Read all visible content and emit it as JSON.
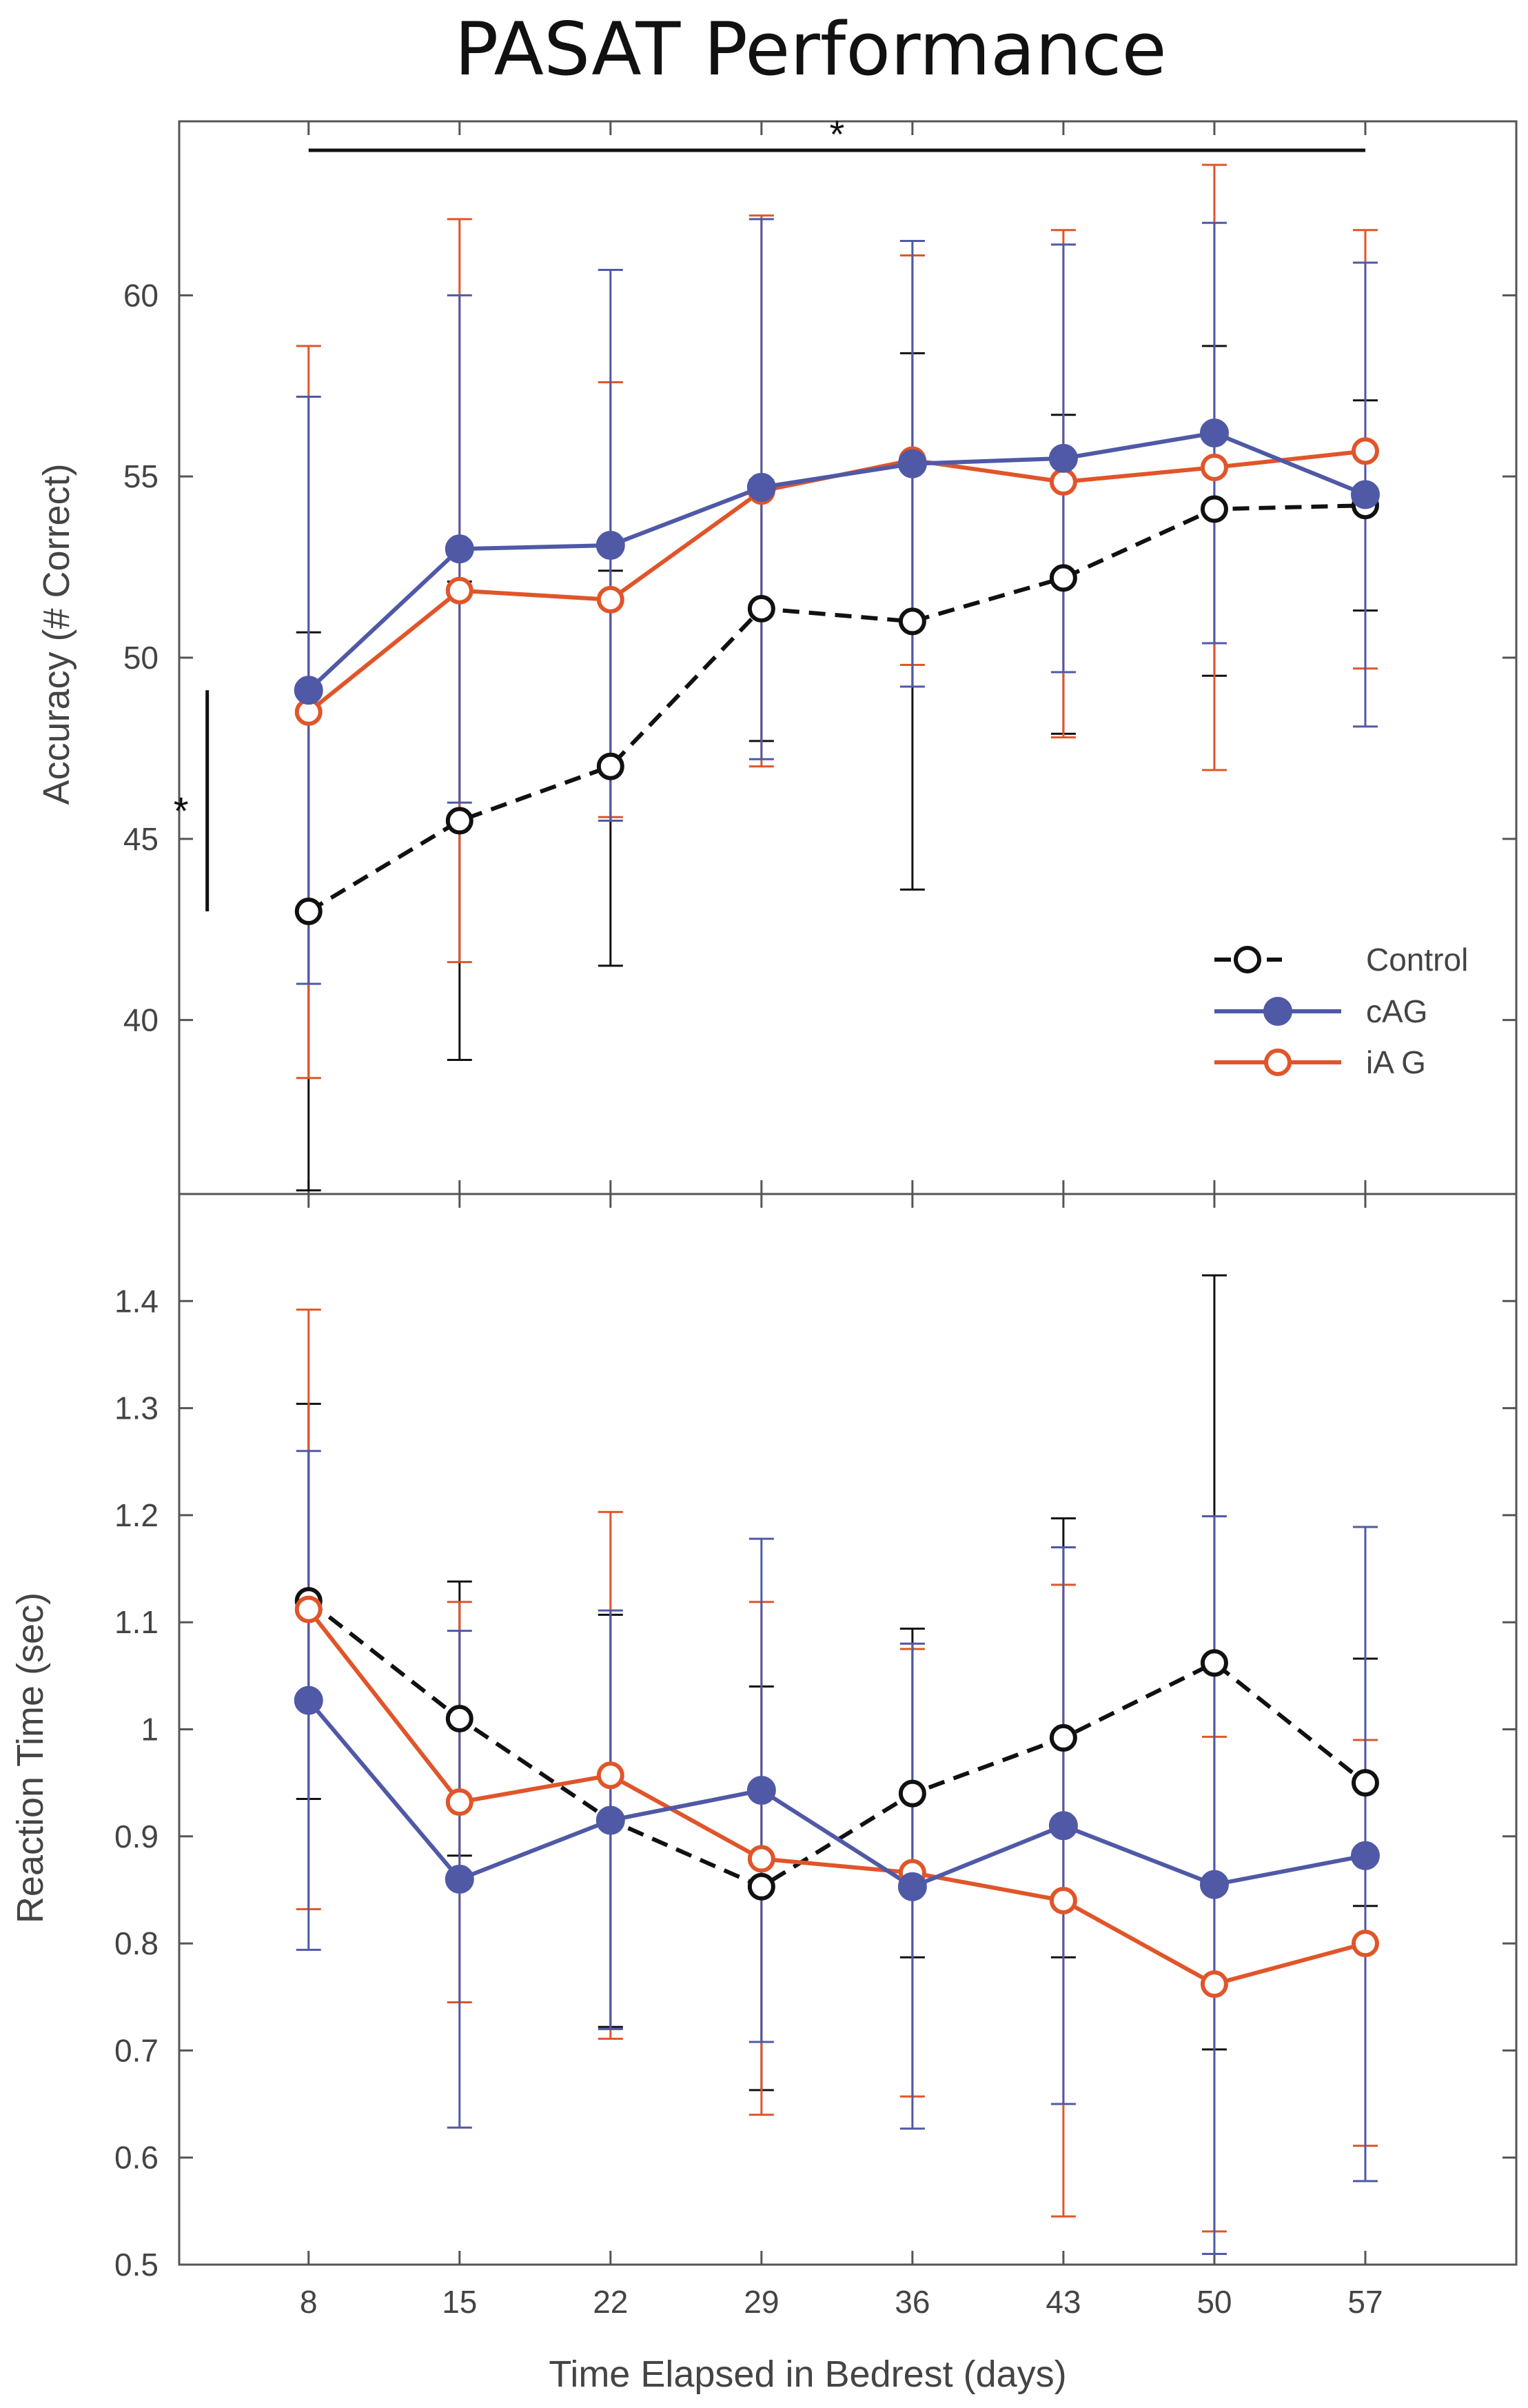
{
  "title": "PASAT Performance",
  "chart_data": [
    {
      "type": "line",
      "panel": "top",
      "ylabel": "Accuracy (# Correct)",
      "xlabel": "",
      "x": [
        8,
        15,
        22,
        29,
        36,
        43,
        50,
        57
      ],
      "xlim": [
        2,
        64
      ],
      "ylim": [
        35.2,
        64.8
      ],
      "yticks": [
        40,
        45,
        50,
        55,
        60
      ],
      "series": [
        {
          "name": "Control",
          "color": "#111111",
          "dashed": true,
          "marker": "open-circle",
          "values": [
            43.0,
            45.5,
            47.0,
            51.35,
            51.0,
            52.2,
            54.1,
            54.2
          ],
          "err_low": [
            35.3,
            38.9,
            41.5,
            47.7,
            43.6,
            47.9,
            49.5,
            51.3
          ],
          "err_high": [
            50.7,
            52.1,
            52.4,
            54.9,
            58.4,
            56.7,
            58.6,
            57.1
          ]
        },
        {
          "name": "cAG",
          "color": "#4f59a6",
          "dashed": false,
          "marker": "filled-circle",
          "values": [
            49.1,
            53.0,
            53.1,
            54.7,
            55.35,
            55.5,
            56.2,
            54.5
          ],
          "err_low": [
            41.0,
            46.0,
            45.5,
            47.2,
            49.2,
            49.6,
            50.4,
            48.1
          ],
          "err_high": [
            57.2,
            60.0,
            60.7,
            62.1,
            61.5,
            61.4,
            62.0,
            60.9
          ]
        },
        {
          "name": "iA G",
          "color": "#e0552a",
          "dashed": false,
          "marker": "open-circle",
          "values": [
            48.5,
            51.85,
            51.6,
            54.6,
            55.45,
            54.85,
            55.25,
            55.7
          ],
          "err_low": [
            38.4,
            41.6,
            45.6,
            47.0,
            49.8,
            47.8,
            46.9,
            49.7
          ],
          "err_high": [
            58.6,
            62.1,
            57.6,
            62.2,
            61.1,
            61.8,
            63.6,
            61.8
          ]
        }
      ],
      "legend": [
        "Control",
        "cAG",
        "iA G"
      ],
      "legend_position": "lower-right",
      "annotations": [
        {
          "label": "*",
          "type": "horizontal-bracket",
          "from_x": 8,
          "to_x": 57,
          "y": 64.0
        },
        {
          "label": "*",
          "type": "vertical-bracket",
          "x": 3.3,
          "from_y": 43.0,
          "to_y": 49.1
        }
      ]
    },
    {
      "type": "line",
      "panel": "bottom",
      "ylabel": "Reaction Time (sec)",
      "xlabel": "Time Elapsed in Bedrest (days)",
      "x": [
        8,
        15,
        22,
        29,
        36,
        43,
        50,
        57
      ],
      "xlim": [
        2,
        64
      ],
      "ylim": [
        0.5,
        1.5
      ],
      "yticks": [
        0.5,
        0.6,
        0.7,
        0.8,
        0.9,
        1,
        1.1,
        1.2,
        1.3,
        1.4
      ],
      "xticks": [
        8,
        15,
        22,
        29,
        36,
        43,
        50,
        57
      ],
      "series": [
        {
          "name": "Control",
          "color": "#111111",
          "dashed": true,
          "marker": "open-circle",
          "values": [
            1.12,
            1.01,
            0.915,
            0.853,
            0.94,
            0.992,
            1.062,
            0.95
          ],
          "err_low": [
            0.935,
            0.882,
            0.722,
            0.663,
            0.787,
            0.787,
            0.701,
            0.835
          ],
          "err_high": [
            1.304,
            1.138,
            1.107,
            1.04,
            1.094,
            1.197,
            1.424,
            1.066
          ]
        },
        {
          "name": "cAG",
          "color": "#4f59a6",
          "dashed": false,
          "marker": "filled-circle",
          "values": [
            1.027,
            0.86,
            0.915,
            0.943,
            0.853,
            0.91,
            0.855,
            0.882
          ],
          "err_low": [
            0.794,
            0.628,
            0.72,
            0.708,
            0.627,
            0.65,
            0.51,
            0.578
          ],
          "err_high": [
            1.26,
            1.092,
            1.111,
            1.178,
            1.08,
            1.17,
            1.199,
            1.189
          ]
        },
        {
          "name": "iA G",
          "color": "#e0552a",
          "dashed": false,
          "marker": "open-circle",
          "values": [
            1.112,
            0.932,
            0.957,
            0.879,
            0.866,
            0.84,
            0.762,
            0.8
          ],
          "err_low": [
            0.832,
            0.745,
            0.711,
            0.64,
            0.657,
            0.545,
            0.531,
            0.611
          ],
          "err_high": [
            1.392,
            1.119,
            1.203,
            1.119,
            1.075,
            1.135,
            0.993,
            0.99
          ]
        }
      ]
    }
  ],
  "colors": {
    "control": "#111111",
    "cag": "#4f59a6",
    "iag": "#e0552a",
    "frame": "#555555",
    "tick_text": "#444444"
  }
}
